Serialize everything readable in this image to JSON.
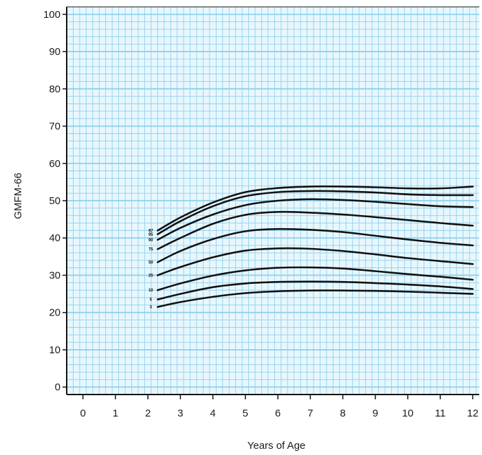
{
  "chart_data": {
    "type": "line",
    "title": "",
    "xlabel": "Years of Age",
    "ylabel": "GMFM-66",
    "xlim": [
      -0.5,
      12.2
    ],
    "ylim": [
      -2,
      102
    ],
    "x_ticks": [
      "0",
      "1",
      "2",
      "3",
      "4",
      "5",
      "6",
      "7",
      "8",
      "9",
      "10",
      "11",
      "12"
    ],
    "y_ticks": [
      "0",
      "10",
      "20",
      "30",
      "40",
      "50",
      "60",
      "70",
      "80",
      "90",
      "100"
    ],
    "grid": true,
    "grid_color": "#8fd0ec",
    "background_color": "#e8f7fd",
    "line_color": "#111111",
    "curve_x": [
      2.3,
      3,
      4,
      5,
      6,
      7,
      8,
      9,
      10,
      11,
      12
    ],
    "series": [
      {
        "label": "97",
        "values": [
          42,
          45.5,
          49.5,
          52.3,
          53.4,
          53.8,
          53.8,
          53.6,
          53.3,
          53.3,
          53.8
        ]
      },
      {
        "label": "95",
        "values": [
          41,
          44.5,
          48.5,
          51.2,
          52.3,
          52.6,
          52.5,
          52.2,
          51.7,
          51.5,
          51.5
        ]
      },
      {
        "label": "90",
        "values": [
          39.5,
          42.7,
          46.3,
          48.8,
          50.0,
          50.4,
          50.2,
          49.7,
          49.1,
          48.5,
          48.3
        ]
      },
      {
        "label": "75",
        "values": [
          37,
          40,
          43.8,
          46.2,
          47.0,
          46.8,
          46.3,
          45.6,
          44.8,
          44.0,
          43.3
        ]
      },
      {
        "label": "50",
        "values": [
          33.5,
          36.5,
          39.7,
          41.8,
          42.4,
          42.2,
          41.6,
          40.6,
          39.6,
          38.7,
          38.0
        ]
      },
      {
        "label": "25",
        "values": [
          30,
          32.2,
          34.8,
          36.6,
          37.2,
          37.1,
          36.5,
          35.6,
          34.6,
          33.8,
          33.0
        ]
      },
      {
        "label": "10",
        "values": [
          26,
          27.8,
          29.9,
          31.3,
          32.0,
          32.1,
          31.8,
          31.1,
          30.3,
          29.6,
          28.8
        ]
      },
      {
        "label": "5",
        "values": [
          23.5,
          25.0,
          26.8,
          27.8,
          28.2,
          28.3,
          28.2,
          27.9,
          27.5,
          27.0,
          26.3
        ]
      },
      {
        "label": "3",
        "values": [
          21.5,
          22.8,
          24.2,
          25.2,
          25.7,
          25.9,
          25.9,
          25.8,
          25.6,
          25.3,
          25.0
        ]
      }
    ]
  }
}
